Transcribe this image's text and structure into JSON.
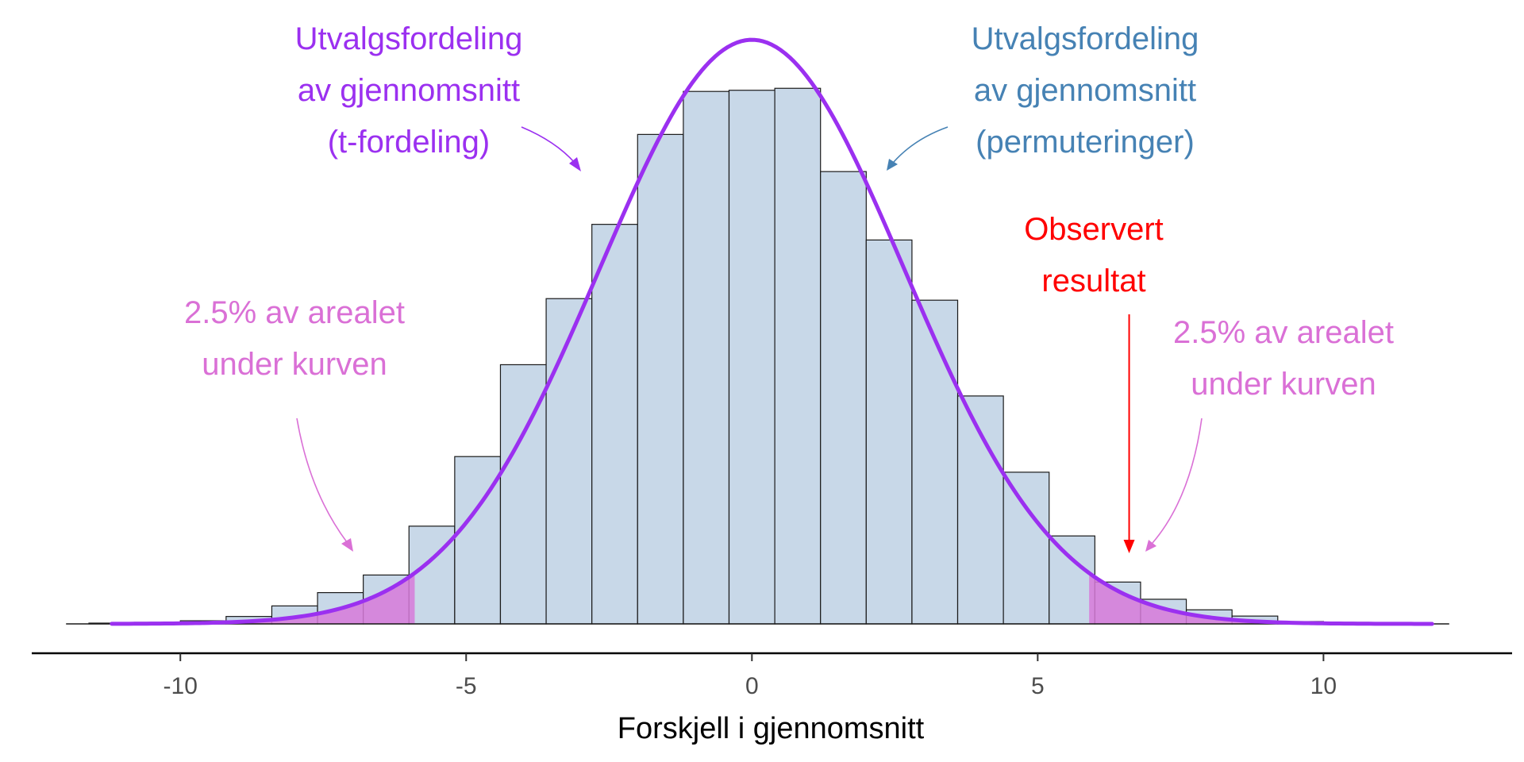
{
  "chart_data": {
    "type": "bar",
    "xlabel": "Forskjell i gjennomsnitt",
    "ylabel": "",
    "xlim": [
      -12.6,
      13.3
    ],
    "ylim": [
      0,
      0.147
    ],
    "x_ticks": [
      -10,
      -5,
      0,
      5,
      10
    ],
    "x_tick_labels": [
      "-10",
      "-5",
      "0",
      "5",
      "10"
    ],
    "grid": false,
    "histogram": {
      "name": "",
      "bin_width": 0.8,
      "bin_edges": [
        -11.6,
        -10.8,
        -10.0,
        -9.2,
        -8.4,
        -7.6,
        -6.8,
        -6.0,
        -5.2,
        -4.4,
        -3.6,
        -2.8,
        -2.0,
        -1.2,
        -0.4,
        0.4,
        1.2,
        2.0,
        2.8,
        3.6,
        4.4,
        5.2,
        6.0,
        6.8,
        7.6,
        8.4,
        9.2,
        10.0,
        10.8,
        11.6
      ],
      "densities": [
        0.0002,
        0.0004,
        0.0008,
        0.0019,
        0.0046,
        0.008,
        0.0125,
        0.025,
        0.0428,
        0.0663,
        0.0832,
        0.1022,
        0.1252,
        0.1362,
        0.1365,
        0.137,
        0.1157,
        0.0982,
        0.0828,
        0.0583,
        0.0388,
        0.0225,
        0.0107,
        0.0063,
        0.0036,
        0.002,
        0.0006,
        0.0004,
        0.0003
      ],
      "fill": "#c8d8e8",
      "stroke": "#1a1a1a"
    },
    "curve": {
      "name": "t-fordeling",
      "x_range": [
        -11.2,
        11.9
      ],
      "mean": 0,
      "sd": 2.67,
      "color": "#9b30f0"
    },
    "critical_value": 5.9,
    "tail_fill": "#d77ad9",
    "observed_value": 6.6,
    "annotations": {
      "t_label": [
        "Utvalgsfordeling",
        "av gjennomsnitt",
        "(t-fordeling)"
      ],
      "t_color": "#9b30f0",
      "perm_label": [
        "Utvalgsfordeling",
        "av gjennomsnitt",
        "(permuteringer)"
      ],
      "perm_color": "#4682b4",
      "observed_label": [
        "Observert",
        "resultat"
      ],
      "observed_color": "#ff0000",
      "tail_left_label": [
        "2.5% av arealet",
        "under kurven"
      ],
      "tail_right_label": [
        "2.5% av arealet",
        "under kurven"
      ],
      "tail_color": "#da70d6"
    }
  }
}
